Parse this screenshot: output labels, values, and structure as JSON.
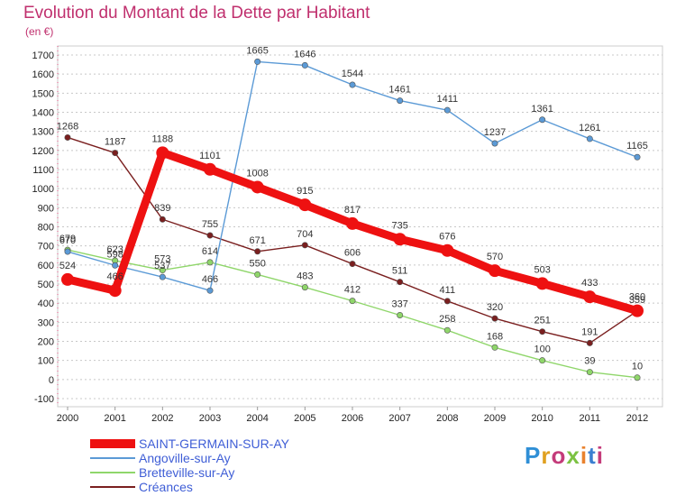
{
  "header": {
    "title": "Evolution du Montant de la Dette par Habitant",
    "subtitle": "(en €)"
  },
  "brand": {
    "logo_text": "Proxiti"
  },
  "chart_data": {
    "type": "line",
    "title": "Evolution du Montant de la Dette par Habitant",
    "ylabel": "(en €)",
    "xlabel": "",
    "x": [
      "2000",
      "2001",
      "2002",
      "2003",
      "2004",
      "2005",
      "2006",
      "2007",
      "2008",
      "2009",
      "2010",
      "2011",
      "2012"
    ],
    "ylim": [
      -100,
      1700
    ],
    "ytick_step": 100,
    "grid": "horizontal dashed",
    "legend": "bottom-left",
    "series": [
      {
        "name": "SAINT-GERMAIN-SUR-AY",
        "color": "#ee1111",
        "emphasis": true,
        "values": [
          524,
          466,
          1188,
          1101,
          1008,
          915,
          817,
          735,
          676,
          570,
          503,
          433,
          360
        ],
        "labels": [
          "524",
          "466",
          "1188",
          "1101",
          "1008",
          "915",
          "817",
          "735",
          "676",
          "570",
          "503",
          "433",
          "360"
        ]
      },
      {
        "name": "Angoville-sur-Ay",
        "color": "#5b9ad6",
        "values": [
          670,
          598,
          537,
          466,
          1665,
          1646,
          1544,
          1461,
          1411,
          1237,
          1361,
          1261,
          1165
        ],
        "labels": [
          "670",
          "598",
          "537",
          "466",
          "1665",
          "1646",
          "1544",
          "1461",
          "1411",
          "1237",
          "1361",
          "1261",
          "1165"
        ]
      },
      {
        "name": "Bretteville-sur-Ay",
        "color": "#8fd66a",
        "values": [
          679,
          623,
          573,
          614,
          550,
          483,
          412,
          337,
          258,
          168,
          100,
          39,
          10
        ],
        "labels": [
          "679",
          "623",
          "573",
          "614",
          "550",
          "483",
          "412",
          "337",
          "258",
          "168",
          "100",
          "39",
          "10"
        ]
      },
      {
        "name": "Créances",
        "color": "#7a1f1f",
        "values": [
          1268,
          1187,
          839,
          755,
          671,
          704,
          606,
          511,
          411,
          320,
          251,
          191,
          359
        ],
        "labels": [
          "1268",
          "1187",
          "839",
          "755",
          "671",
          "704",
          "606",
          "511",
          "411",
          "320",
          "251",
          "191",
          "359"
        ]
      }
    ]
  }
}
